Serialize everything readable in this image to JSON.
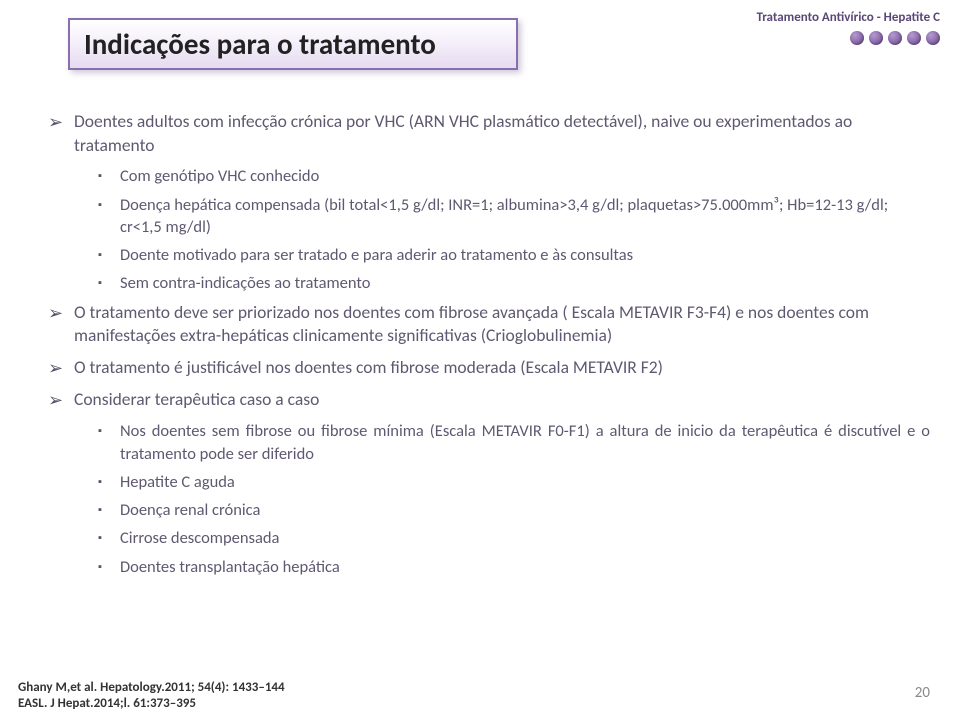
{
  "colors": {
    "title_border": "#8a6fb0",
    "title_gradient_top": "#ffffff",
    "title_gradient_mid": "#f5f0fa",
    "title_gradient_bottom": "#e6dbf0",
    "text_body": "#5f5870",
    "top_right_label": "#5a4775",
    "dot_light": "#b59bd0",
    "dot_dark": "#5a4380",
    "pagenum": "#888888"
  },
  "typography": {
    "title_fontsize": 29,
    "body_fontsize": 17.5,
    "sub_fontsize": 16.5,
    "ref_fontsize": 13
  },
  "header": {
    "title": "Indicações para o tratamento",
    "top_right": "Tratamento Antivírico - Hepatite C",
    "dot_count": 5
  },
  "bullets": {
    "b1": "Doentes adultos com infecção crónica por VHC (ARN VHC plasmático detectável), naive ou experimentados ao tratamento",
    "b1a": "Com genótipo VHC conhecido",
    "b1b": "Doença hepática compensada (bil total<1,5 g/dl; INR=1; albumina>3,4 g/dl; plaquetas>75.000mm³; Hb=12-13 g/dl; cr<1,5 mg/dl)",
    "b1c": "Doente motivado para ser tratado e para aderir ao tratamento e às consultas",
    "b1d": "Sem contra-indicações ao tratamento",
    "b2": "O tratamento deve ser priorizado nos doentes com fibrose avançada ( Escala METAVIR F3-F4) e nos doentes com manifestações extra-hepáticas clinicamente significativas (Crioglobulinemia)",
    "b3": "O tratamento é justificável nos doentes com fibrose moderada (Escala METAVIR F2)",
    "b4": "Considerar terapêutica caso a caso",
    "b4a": "Nos doentes sem fibrose ou fibrose mínima (Escala METAVIR F0-F1) a altura de inicio da terapêutica é discutível e o tratamento pode ser diferido",
    "b4b": "Hepatite C aguda",
    "b4c": "Doença renal crónica",
    "b4d": "Cirrose descompensada",
    "b4e": "Doentes transplantação hepática"
  },
  "refs": {
    "line1": "Ghany M,et al. Hepatology.2011; 54(4): 1433–144",
    "line2": "EASL. J Hepat.2014;l. 61:373–395"
  },
  "pagenum": "20"
}
